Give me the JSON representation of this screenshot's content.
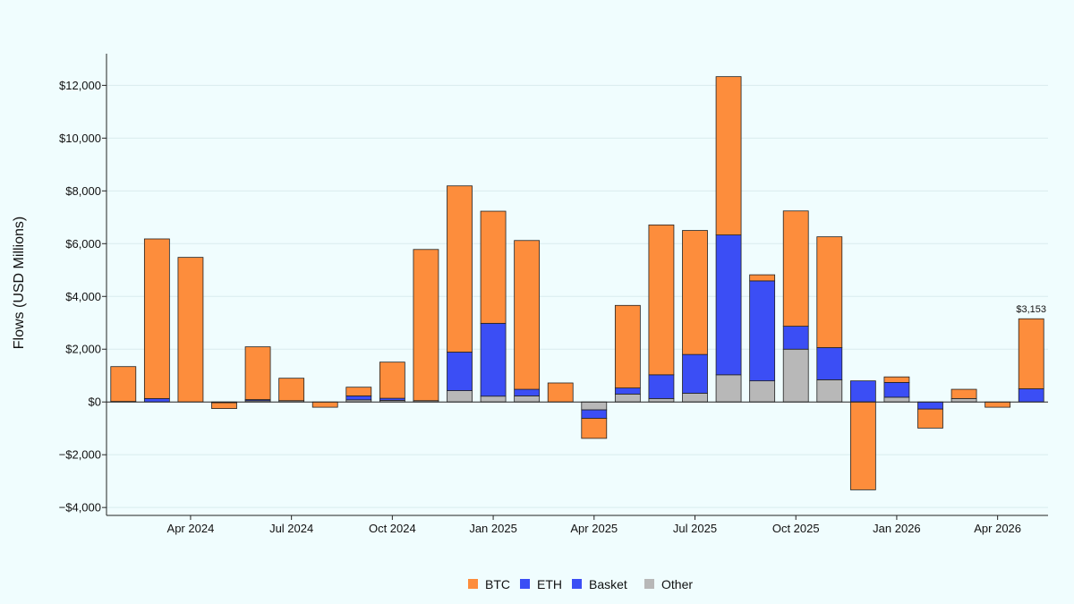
{
  "chart_data": {
    "type": "bar",
    "stacked": true,
    "ylabel": "Flows (USD Millions)",
    "ylim": [
      -4300,
      13200
    ],
    "yticks": [
      -4000,
      -2000,
      0,
      2000,
      4000,
      6000,
      8000,
      10000,
      12000
    ],
    "ytick_labels": [
      "−$4,000",
      "−$2,000",
      "$0",
      "$2,000",
      "$4,000",
      "$6,000",
      "$8,000",
      "$10,000",
      "$12,000"
    ],
    "x": [
      "2024-02",
      "2024-03",
      "2024-04",
      "2024-05",
      "2024-06",
      "2024-07",
      "2024-08",
      "2024-09",
      "2024-10",
      "2024-11",
      "2024-12",
      "2025-01",
      "2025-02",
      "2025-03",
      "2025-04",
      "2025-05",
      "2025-06",
      "2025-07",
      "2025-08",
      "2025-09",
      "2025-10",
      "2025-11",
      "2025-12",
      "2026-01",
      "2026-02",
      "2026-03",
      "2026-04",
      "2026-05"
    ],
    "xtick_positions": [
      2,
      5,
      8,
      11,
      14,
      17,
      20,
      23,
      26
    ],
    "xtick_labels": [
      "Apr 2024",
      "Jul 2024",
      "Oct 2024",
      "Jan 2025",
      "Apr 2025",
      "Jul 2025",
      "Oct 2025",
      "Jan 2026",
      "Apr 2026"
    ],
    "series": [
      {
        "name": "Other",
        "color": "#b8b8b8",
        "values": [
          20,
          0,
          0,
          0,
          50,
          50,
          0,
          80,
          60,
          50,
          430,
          220,
          230,
          0,
          -300,
          300,
          130,
          330,
          1030,
          800,
          2000,
          840,
          0,
          180,
          0,
          130,
          0,
          0
        ]
      },
      {
        "name": "Basket",
        "color": "#3b4ef5",
        "values": [
          0,
          0,
          0,
          0,
          0,
          0,
          0,
          0,
          0,
          0,
          0,
          0,
          0,
          0,
          0,
          0,
          0,
          0,
          0,
          0,
          0,
          0,
          0,
          0,
          0,
          0,
          0,
          0
        ]
      },
      {
        "name": "ETH",
        "color": "#3b4ef5",
        "values": [
          0,
          130,
          0,
          -30,
          40,
          0,
          0,
          150,
          80,
          0,
          1460,
          2760,
          250,
          0,
          -320,
          230,
          900,
          1470,
          5300,
          3790,
          870,
          1220,
          800,
          560,
          -270,
          0,
          0,
          500
        ]
      },
      {
        "name": "BTC",
        "color": "#fd8d3c",
        "values": [
          1320,
          6050,
          5480,
          -220,
          2000,
          850,
          -200,
          330,
          1370,
          5730,
          6300,
          4250,
          5640,
          720,
          -760,
          3130,
          5680,
          4700,
          6000,
          230,
          4370,
          4200,
          -3330,
          210,
          -720,
          350,
          -200,
          2653
        ]
      }
    ],
    "annotation": {
      "bar_index": 27,
      "text": "$3,153"
    },
    "legend": {
      "position": "bottom-center",
      "entries": [
        "BTC",
        "ETH",
        "Basket",
        "Other"
      ]
    },
    "grid": "horizontal"
  }
}
